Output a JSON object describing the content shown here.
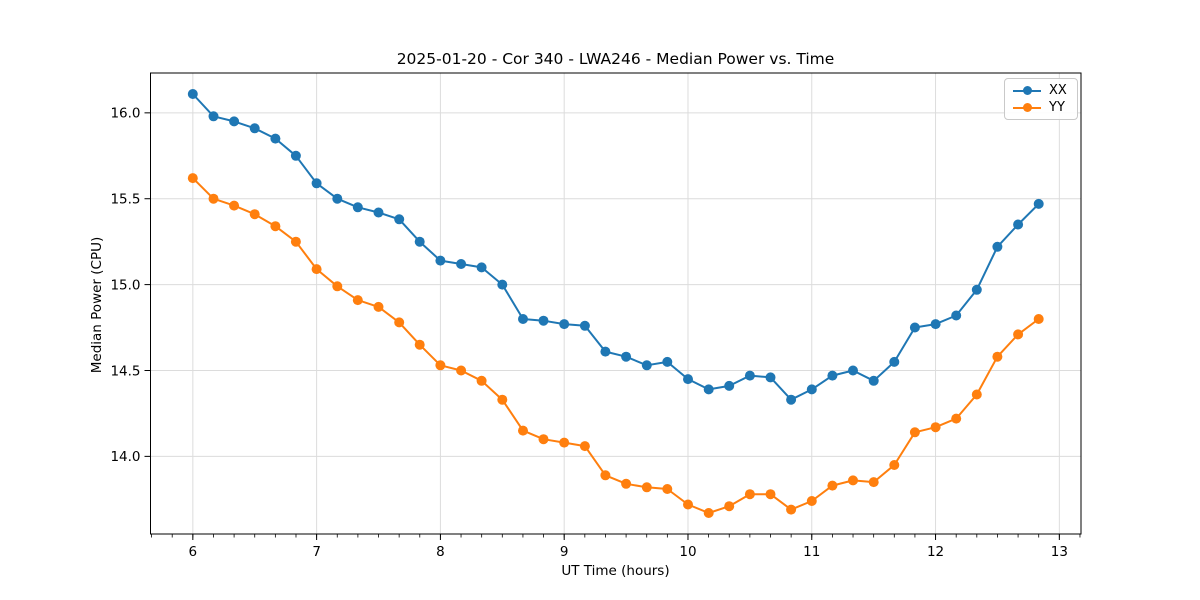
{
  "chart_data": {
    "type": "line",
    "title": "2025-01-20 - Cor 340 - LWA246 - Median Power vs. Time",
    "xlabel": "UT Time (hours)",
    "ylabel": "Median Power (CPU)",
    "xlim": [
      5.658,
      13.175
    ],
    "ylim": [
      13.548,
      16.232
    ],
    "x_ticks": [
      6,
      7,
      8,
      9,
      10,
      11,
      12,
      13
    ],
    "x_tick_labels": [
      "6",
      "7",
      "8",
      "9",
      "10",
      "11",
      "12",
      "13"
    ],
    "y_ticks": [
      14.0,
      14.5,
      15.0,
      15.5,
      16.0
    ],
    "y_tick_labels": [
      "14.0",
      "14.5",
      "15.0",
      "15.5",
      "16.0"
    ],
    "x_minor_tick_step": 0.166667,
    "grid": true,
    "grid_color": "#dcdcdc",
    "legend_position": "upper right",
    "x": [
      6.0,
      6.167,
      6.333,
      6.5,
      6.667,
      6.833,
      7.0,
      7.167,
      7.333,
      7.5,
      7.667,
      7.833,
      8.0,
      8.167,
      8.333,
      8.5,
      8.667,
      8.833,
      9.0,
      9.167,
      9.333,
      9.5,
      9.667,
      9.833,
      10.0,
      10.167,
      10.333,
      10.5,
      10.667,
      10.833,
      11.0,
      11.167,
      11.333,
      11.5,
      11.667,
      11.833,
      12.0,
      12.167,
      12.333,
      12.5,
      12.667,
      12.833
    ],
    "series": [
      {
        "name": "XX",
        "color": "#1f77b4",
        "marker": "circle",
        "values": [
          16.11,
          15.98,
          15.95,
          15.91,
          15.85,
          15.75,
          15.59,
          15.5,
          15.45,
          15.42,
          15.38,
          15.25,
          15.14,
          15.12,
          15.1,
          15.0,
          14.8,
          14.79,
          14.77,
          14.76,
          14.61,
          14.58,
          14.53,
          14.55,
          14.45,
          14.39,
          14.41,
          14.47,
          14.46,
          14.33,
          14.39,
          14.47,
          14.5,
          14.44,
          14.55,
          14.75,
          14.77,
          14.82,
          14.97,
          15.22,
          15.35,
          15.47
        ]
      },
      {
        "name": "YY",
        "color": "#ff7f0e",
        "marker": "circle",
        "values": [
          15.62,
          15.5,
          15.46,
          15.41,
          15.34,
          15.25,
          15.09,
          14.99,
          14.91,
          14.87,
          14.78,
          14.65,
          14.53,
          14.5,
          14.44,
          14.33,
          14.15,
          14.1,
          14.08,
          14.06,
          13.89,
          13.84,
          13.82,
          13.81,
          13.72,
          13.67,
          13.71,
          13.78,
          13.78,
          13.69,
          13.74,
          13.83,
          13.86,
          13.85,
          13.95,
          14.14,
          14.17,
          14.22,
          14.36,
          14.58,
          14.71,
          14.8
        ]
      }
    ]
  }
}
